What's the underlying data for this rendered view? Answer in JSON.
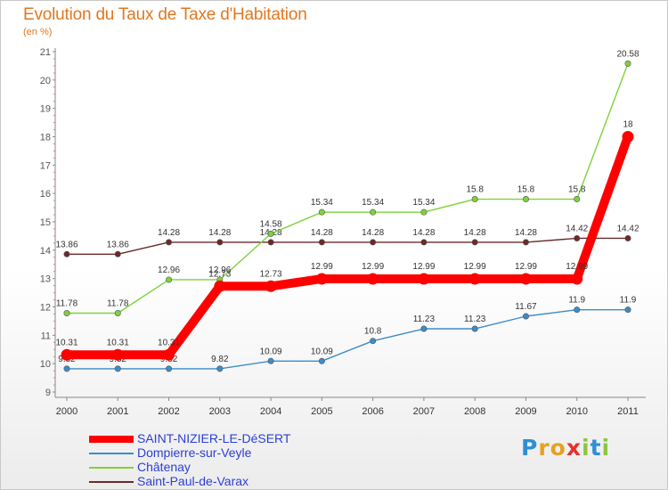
{
  "chart_data": {
    "type": "line",
    "title": "Evolution du Taux de Taxe d'Habitation",
    "subtitle": "(en %)",
    "xlabel": "",
    "ylabel": "",
    "x": [
      "2000",
      "2001",
      "2002",
      "2003",
      "2004",
      "2005",
      "2006",
      "2007",
      "2008",
      "2009",
      "2010",
      "2011"
    ],
    "ylim": [
      9,
      21
    ],
    "yticks": [
      9,
      10,
      11,
      12,
      13,
      14,
      15,
      16,
      17,
      18,
      19,
      20,
      21
    ],
    "grid": false,
    "legend_position": "bottom-left",
    "series": [
      {
        "name": "SAINT-NIZIER-LE-DéSERT",
        "color": "#ff0000",
        "values": [
          10.31,
          10.31,
          10.31,
          12.73,
          12.73,
          12.99,
          12.99,
          12.99,
          12.99,
          12.99,
          12.99,
          18
        ]
      },
      {
        "name": "Dompierre-sur-Veyle",
        "color": "#3c8cc8",
        "values": [
          9.82,
          9.82,
          9.82,
          9.82,
          10.09,
          10.09,
          10.8,
          11.23,
          11.23,
          11.67,
          11.9,
          11.9
        ]
      },
      {
        "name": "Châtenay",
        "color": "#7ed23c",
        "values": [
          11.78,
          11.78,
          12.96,
          12.96,
          14.58,
          15.34,
          15.34,
          15.34,
          15.8,
          15.8,
          15.8,
          20.58
        ]
      },
      {
        "name": "Saint-Paul-de-Varax",
        "color": "#6b2a2a",
        "values": [
          13.86,
          13.86,
          14.28,
          14.28,
          14.28,
          14.28,
          14.28,
          14.28,
          14.28,
          14.28,
          14.42,
          14.42
        ]
      }
    ]
  },
  "branding": {
    "logo_text": "Proxiti"
  }
}
